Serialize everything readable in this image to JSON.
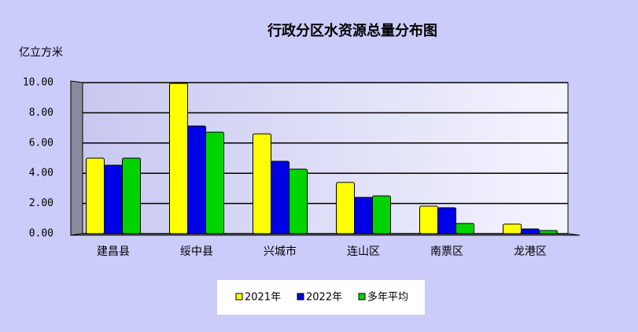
{
  "chart_data": {
    "type": "bar",
    "title": "行政分区水资源总量分布图",
    "y_label": "亿立方米",
    "categories": [
      "建昌县",
      "绥中县",
      "兴城市",
      "连山区",
      "南票区",
      "龙港区"
    ],
    "series": [
      {
        "name": "2021年",
        "color": "#ffff00",
        "values": [
          5.0,
          9.95,
          6.61,
          3.39,
          1.82,
          0.63
        ]
      },
      {
        "name": "2022年",
        "color": "#0000e6",
        "values": [
          4.53,
          7.13,
          4.79,
          2.4,
          1.72,
          0.31
        ]
      },
      {
        "name": "多年平均",
        "color": "#00d400",
        "values": [
          5.0,
          6.72,
          4.27,
          2.5,
          0.68,
          0.21
        ]
      }
    ],
    "ylim": [
      0,
      10
    ],
    "yticks": [
      {
        "value": 0,
        "label": "0.00"
      },
      {
        "value": 2,
        "label": "2.00"
      },
      {
        "value": 4,
        "label": "4.00"
      },
      {
        "value": 6,
        "label": "6.00"
      },
      {
        "value": 8,
        "label": "8.00"
      },
      {
        "value": 10,
        "label": "10.00"
      }
    ],
    "grid": true
  }
}
